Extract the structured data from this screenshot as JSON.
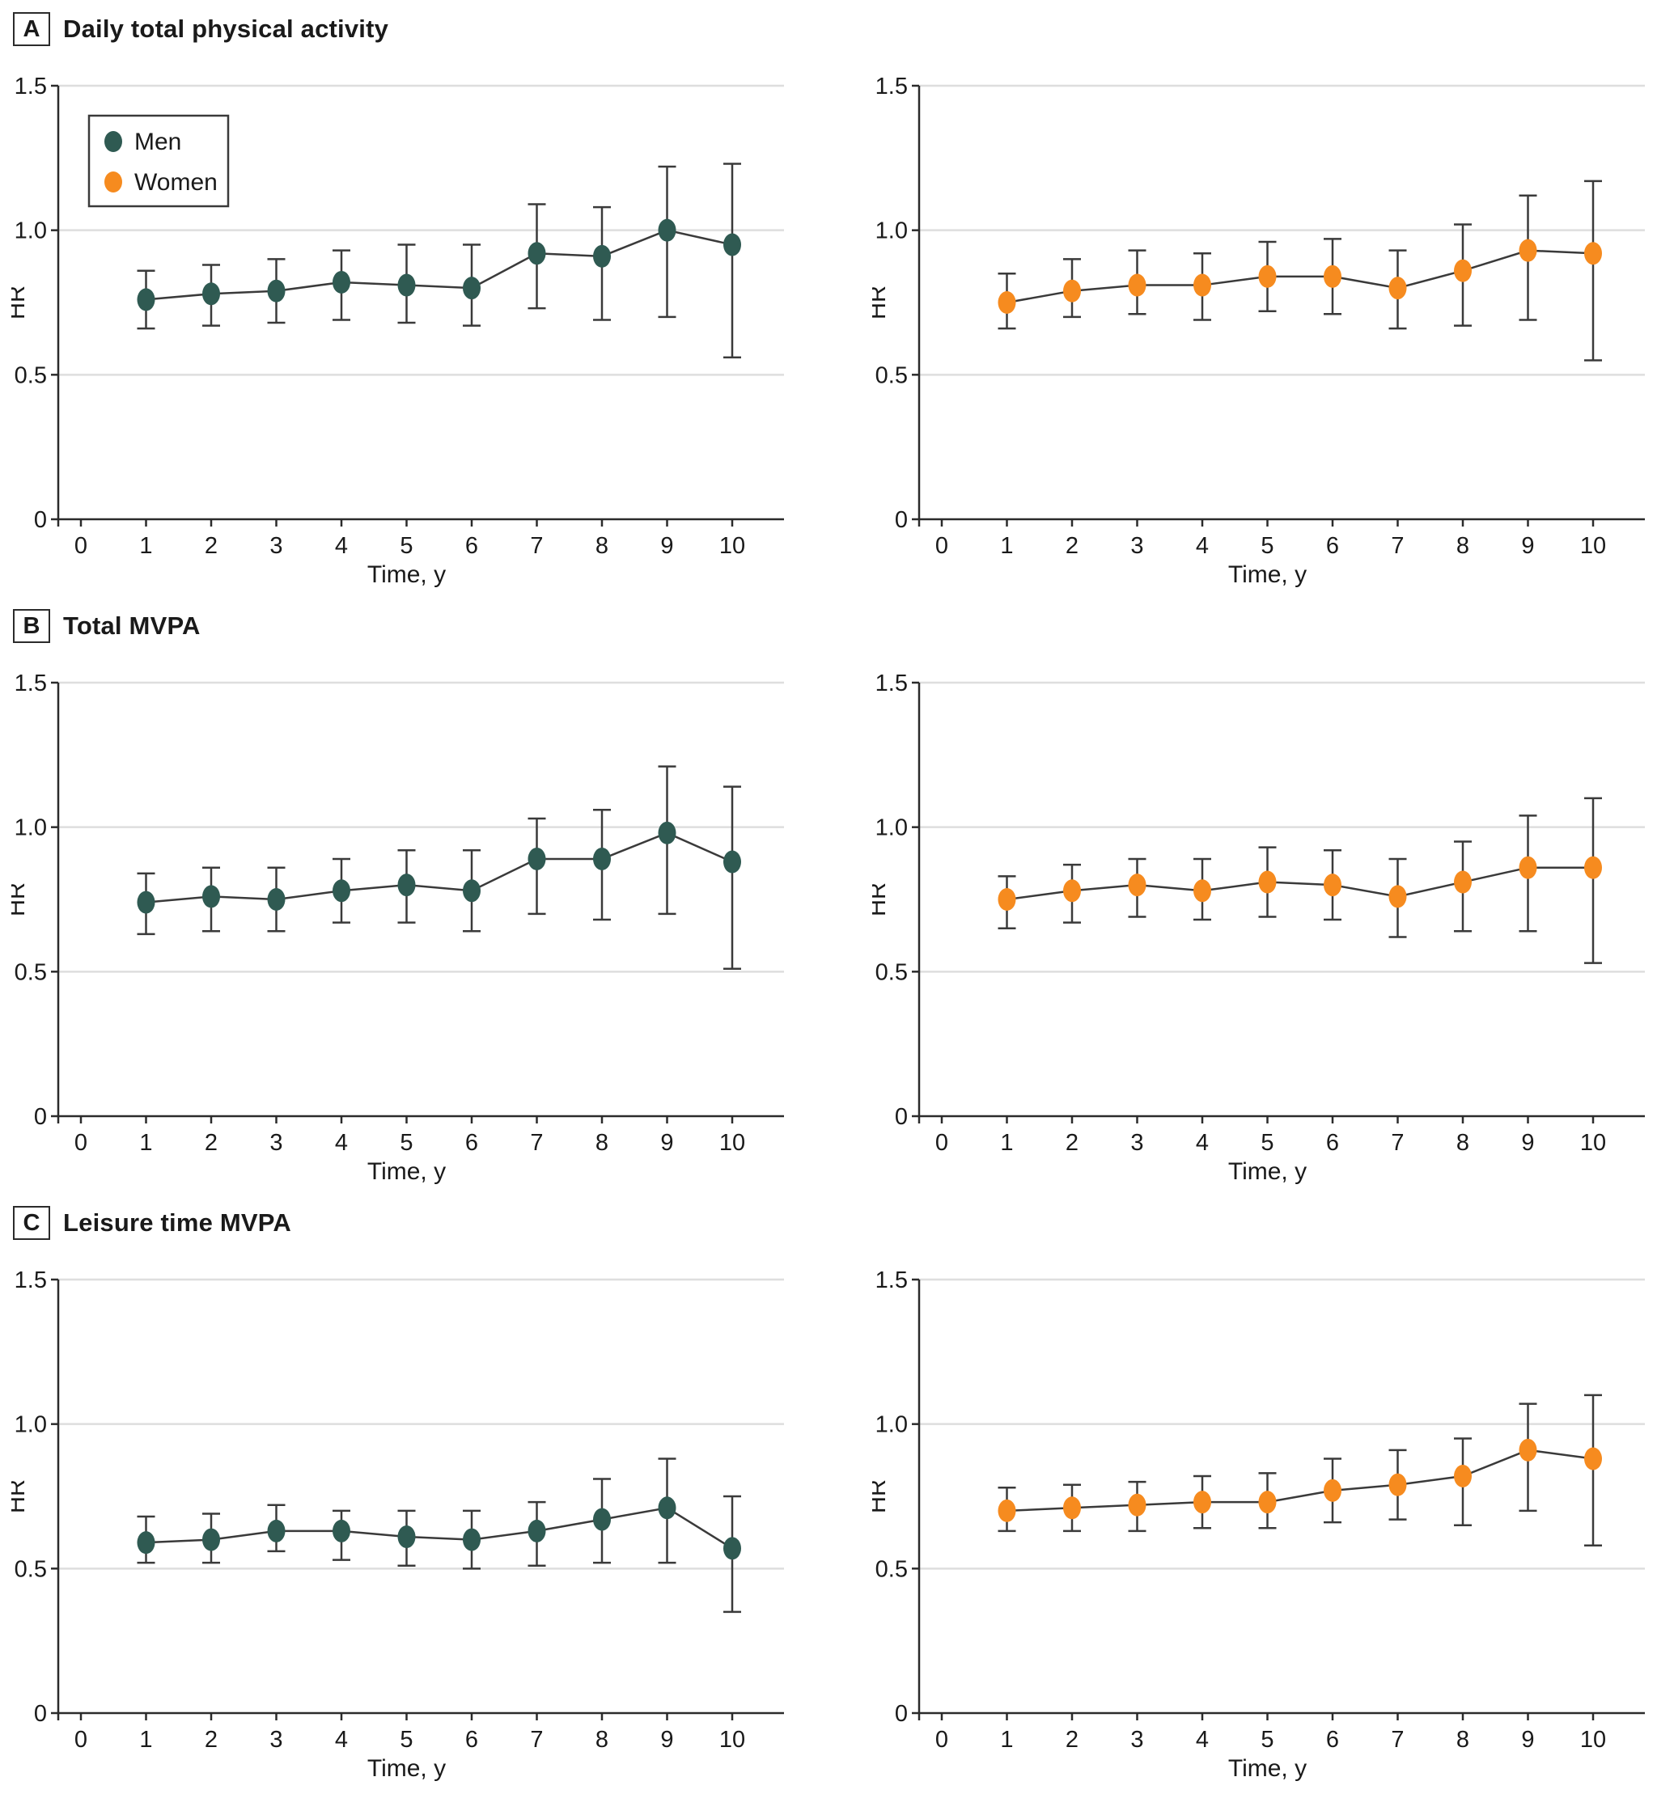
{
  "figure": {
    "panels": [
      {
        "letter": "A",
        "title": "Daily total physical activity"
      },
      {
        "letter": "B",
        "title": "Total MVPA"
      },
      {
        "letter": "C",
        "title": "Leisure time MVPA"
      }
    ]
  },
  "colors": {
    "men": "#2F5A52",
    "women": "#F68B1F",
    "line": "#3A3A3A",
    "grid": "#DEDEDE",
    "axis": "#2B2B2B",
    "text": "#1A1A1A"
  },
  "axes": {
    "y_label": "HR",
    "x_label": "Time, y",
    "y_max": 1.5,
    "y_ticks": [
      {
        "v": 0,
        "label": "0"
      },
      {
        "v": 0.5,
        "label": "0.5"
      },
      {
        "v": 1.0,
        "label": "1.0"
      },
      {
        "v": 1.5,
        "label": "1.5"
      }
    ],
    "x_ticks": [
      "0",
      "1",
      "2",
      "3",
      "4",
      "5",
      "6",
      "7",
      "8",
      "9",
      "10"
    ]
  },
  "legend": {
    "items": [
      {
        "label": "Men",
        "color_key": "men"
      },
      {
        "label": "Women",
        "color_key": "women"
      }
    ]
  },
  "chart_data": [
    {
      "panel": "A",
      "title": "Daily total physical activity",
      "type": "line",
      "x": [
        1,
        2,
        3,
        4,
        5,
        6,
        7,
        8,
        9,
        10
      ],
      "xlabel": "Time, y",
      "ylabel": "HR",
      "ylim": [
        0,
        1.5
      ],
      "grid": true,
      "legend_position": "upper-left-first-chart",
      "series": [
        {
          "name": "Men",
          "color_key": "men",
          "hr": [
            0.76,
            0.78,
            0.79,
            0.82,
            0.81,
            0.8,
            0.92,
            0.91,
            1.0,
            0.95
          ],
          "ci_low": [
            0.66,
            0.67,
            0.68,
            0.69,
            0.68,
            0.67,
            0.73,
            0.69,
            0.7,
            0.56
          ],
          "ci_high": [
            0.86,
            0.88,
            0.9,
            0.93,
            0.95,
            0.95,
            1.09,
            1.08,
            1.22,
            1.23
          ]
        },
        {
          "name": "Women",
          "color_key": "women",
          "hr": [
            0.75,
            0.79,
            0.81,
            0.81,
            0.84,
            0.84,
            0.8,
            0.86,
            0.93,
            0.92
          ],
          "ci_low": [
            0.66,
            0.7,
            0.71,
            0.69,
            0.72,
            0.71,
            0.66,
            0.67,
            0.69,
            0.55
          ],
          "ci_high": [
            0.85,
            0.9,
            0.93,
            0.92,
            0.96,
            0.97,
            0.93,
            1.02,
            1.12,
            1.17
          ]
        }
      ]
    },
    {
      "panel": "B",
      "title": "Total MVPA",
      "type": "line",
      "x": [
        1,
        2,
        3,
        4,
        5,
        6,
        7,
        8,
        9,
        10
      ],
      "xlabel": "Time, y",
      "ylabel": "HR",
      "ylim": [
        0,
        1.5
      ],
      "grid": true,
      "series": [
        {
          "name": "Men",
          "color_key": "men",
          "hr": [
            0.74,
            0.76,
            0.75,
            0.78,
            0.8,
            0.78,
            0.89,
            0.89,
            0.98,
            0.88
          ],
          "ci_low": [
            0.63,
            0.64,
            0.64,
            0.67,
            0.67,
            0.64,
            0.7,
            0.68,
            0.7,
            0.51
          ],
          "ci_high": [
            0.84,
            0.86,
            0.86,
            0.89,
            0.92,
            0.92,
            1.03,
            1.06,
            1.21,
            1.14
          ]
        },
        {
          "name": "Women",
          "color_key": "women",
          "hr": [
            0.75,
            0.78,
            0.8,
            0.78,
            0.81,
            0.8,
            0.76,
            0.81,
            0.86,
            0.86
          ],
          "ci_low": [
            0.65,
            0.67,
            0.69,
            0.68,
            0.69,
            0.68,
            0.62,
            0.64,
            0.64,
            0.53
          ],
          "ci_high": [
            0.83,
            0.87,
            0.89,
            0.89,
            0.93,
            0.92,
            0.89,
            0.95,
            1.04,
            1.1
          ]
        }
      ]
    },
    {
      "panel": "C",
      "title": "Leisure time MVPA",
      "type": "line",
      "x": [
        1,
        2,
        3,
        4,
        5,
        6,
        7,
        8,
        9,
        10
      ],
      "xlabel": "Time, y",
      "ylabel": "HR",
      "ylim": [
        0,
        1.5
      ],
      "grid": true,
      "series": [
        {
          "name": "Men",
          "color_key": "men",
          "hr": [
            0.59,
            0.6,
            0.63,
            0.63,
            0.61,
            0.6,
            0.63,
            0.67,
            0.71,
            0.57
          ],
          "ci_low": [
            0.52,
            0.52,
            0.56,
            0.53,
            0.51,
            0.5,
            0.51,
            0.52,
            0.52,
            0.35
          ],
          "ci_high": [
            0.68,
            0.69,
            0.72,
            0.7,
            0.7,
            0.7,
            0.73,
            0.81,
            0.88,
            0.75
          ]
        },
        {
          "name": "Women",
          "color_key": "women",
          "hr": [
            0.7,
            0.71,
            0.72,
            0.73,
            0.73,
            0.77,
            0.79,
            0.82,
            0.91,
            0.88
          ],
          "ci_low": [
            0.63,
            0.63,
            0.63,
            0.64,
            0.64,
            0.66,
            0.67,
            0.65,
            0.7,
            0.58
          ],
          "ci_high": [
            0.78,
            0.79,
            0.8,
            0.82,
            0.83,
            0.88,
            0.91,
            0.95,
            1.07,
            1.1
          ]
        }
      ]
    }
  ]
}
